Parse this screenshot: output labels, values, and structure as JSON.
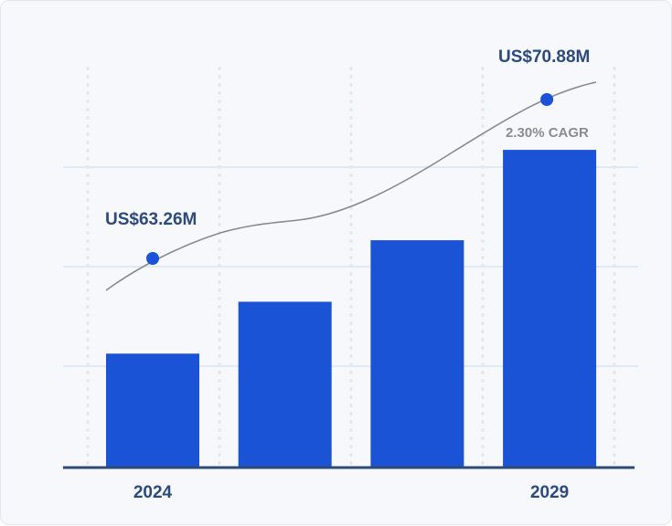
{
  "chart_data": {
    "type": "bar",
    "categories": [
      "2024",
      "",
      "",
      "2029"
    ],
    "values": [
      63.26,
      65.2,
      67.5,
      70.88
    ],
    "ylim": [
      59,
      73
    ],
    "grid": true,
    "start_label": "US$63.26M",
    "end_label": "US$70.88M",
    "cagr_label": "2.30% CAGR",
    "trend_line": true,
    "colors": {
      "bar": "#1a53d6",
      "dot": "#1a53d6",
      "trend": "#8a8a8a",
      "value_text": "#2d4a7a",
      "cagr_text": "#8c8c8c",
      "grid": "#dfeaf6",
      "axis": "#2d4a7a"
    }
  }
}
